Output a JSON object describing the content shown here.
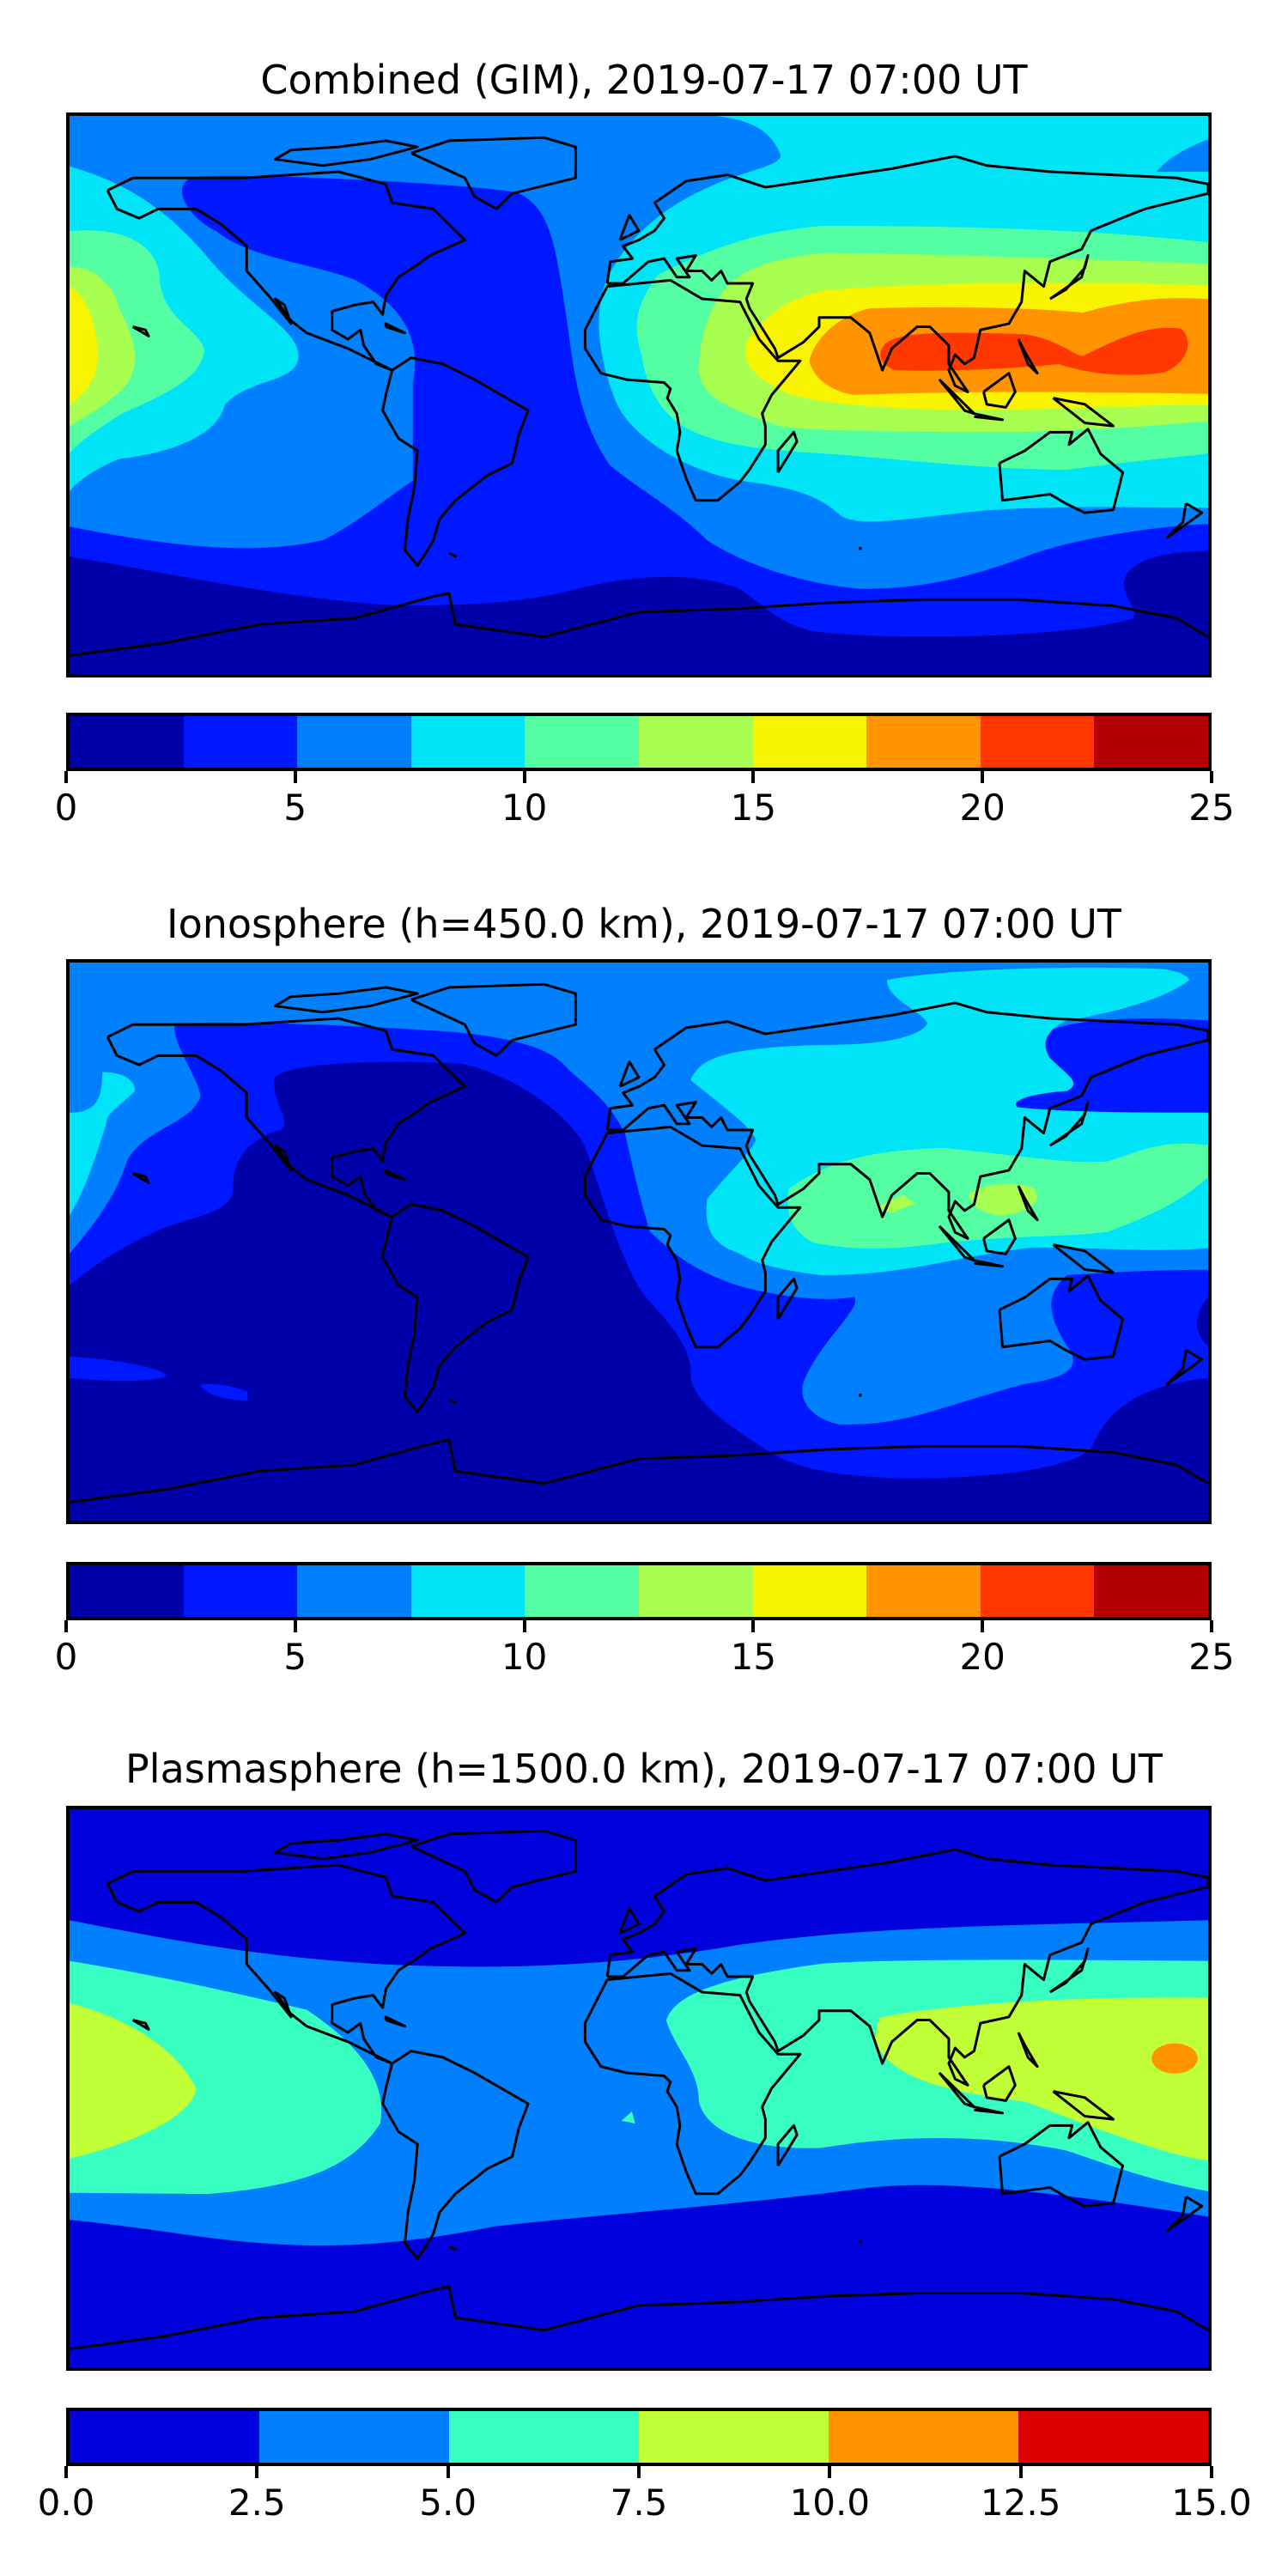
{
  "panels": [
    {
      "title": "Combined (GIM), 2019-07-17 07:00 UT",
      "colorbar": {
        "min": 0,
        "max": 25,
        "levels": [
          0,
          2.5,
          5,
          7.5,
          10,
          12.5,
          15,
          17.5,
          20,
          22.5,
          25
        ],
        "colors": [
          "#0000AA",
          "#0018FF",
          "#0080FF",
          "#00E4F8",
          "#54FFA4",
          "#A8FF50",
          "#F8F400",
          "#FF9400",
          "#FF3800",
          "#B40000"
        ],
        "ticks": [
          {
            "value": 0,
            "label": "0"
          },
          {
            "value": 5,
            "label": "5"
          },
          {
            "value": 10,
            "label": "10"
          },
          {
            "value": 15,
            "label": "15"
          },
          {
            "value": 20,
            "label": "20"
          },
          {
            "value": 25,
            "label": "25"
          }
        ]
      }
    },
    {
      "title": "Ionosphere  (h=450.0 km), 2019-07-17 07:00 UT",
      "colorbar": {
        "min": 0,
        "max": 25,
        "levels": [
          0,
          2.5,
          5,
          7.5,
          10,
          12.5,
          15,
          17.5,
          20,
          22.5,
          25
        ],
        "colors": [
          "#0000AA",
          "#0018FF",
          "#0080FF",
          "#00E4F8",
          "#54FFA4",
          "#A8FF50",
          "#F8F400",
          "#FF9400",
          "#FF3800",
          "#B40000"
        ],
        "ticks": [
          {
            "value": 0,
            "label": "0"
          },
          {
            "value": 5,
            "label": "5"
          },
          {
            "value": 10,
            "label": "10"
          },
          {
            "value": 15,
            "label": "15"
          },
          {
            "value": 20,
            "label": "20"
          },
          {
            "value": 25,
            "label": "25"
          }
        ]
      }
    },
    {
      "title": "Plasmasphere (h=1500.0 km), 2019-07-17 07:00 UT",
      "colorbar": {
        "min": 0,
        "max": 15,
        "levels": [
          0,
          2.5,
          5,
          7.5,
          10,
          12.5,
          15
        ],
        "colors": [
          "#0000DC",
          "#0080FF",
          "#36FFC1",
          "#C1FF36",
          "#FF9400",
          "#DC0000"
        ],
        "ticks": [
          {
            "value": 0,
            "label": "0.0"
          },
          {
            "value": 2.5,
            "label": "2.5"
          },
          {
            "value": 5,
            "label": "5.0"
          },
          {
            "value": 7.5,
            "label": "7.5"
          },
          {
            "value": 10,
            "label": "10.0"
          },
          {
            "value": 12.5,
            "label": "12.5"
          },
          {
            "value": 15,
            "label": "15.0"
          }
        ]
      }
    }
  ]
}
